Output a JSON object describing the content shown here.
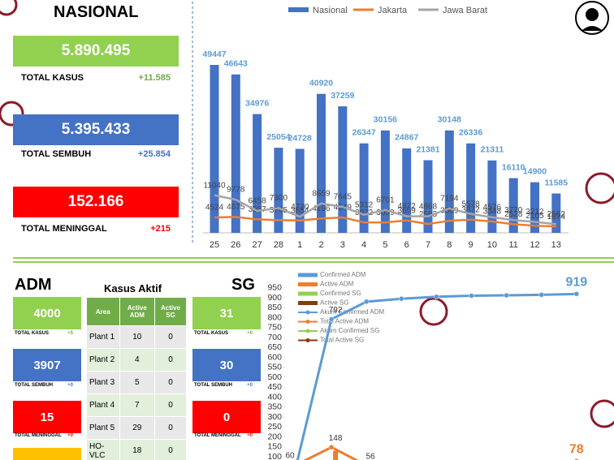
{
  "nasional": {
    "title": "NASIONAL",
    "stats": [
      {
        "value": "5.890.495",
        "label": "TOTAL KASUS",
        "change": "+11.585"
      },
      {
        "value": "5.395.433",
        "label": "TOTAL SEMBUH",
        "change": "+25.854"
      },
      {
        "value": "152.166",
        "label": "TOTAL MENINGGAL",
        "change": "+215"
      }
    ]
  },
  "adm": {
    "title": "ADM",
    "stats": [
      {
        "value": "4000",
        "label": "TOTAL KASUS",
        "change": "+5"
      },
      {
        "value": "3907",
        "label": "TOTAL SEMBUH",
        "change": "+0"
      },
      {
        "value": "15",
        "label": "TOTAL MENINGGAL",
        "change": "+0"
      }
    ]
  },
  "kasus_aktif": {
    "title": "Kasus Aktif",
    "columns": [
      "Area",
      "Active ADM",
      "Active SG"
    ],
    "rows": [
      [
        "Plant 1",
        10,
        0
      ],
      [
        "Plant 2",
        4,
        0
      ],
      [
        "Plant 3",
        5,
        0
      ],
      [
        "Plant 4",
        7,
        0
      ],
      [
        "Plant 5",
        29,
        0
      ],
      [
        "HO-VLC",
        18,
        0
      ]
    ]
  },
  "sg": {
    "title": "SG",
    "stats": [
      {
        "value": "31",
        "label": "TOTAL KASUS",
        "change": "+0"
      },
      {
        "value": "30",
        "label": "TOTAL SEMBUH",
        "change": "+0"
      },
      {
        "value": "0",
        "label": "TOTAL MENINGGAL",
        "change": "+0"
      }
    ]
  },
  "chart_data": [
    {
      "type": "bar",
      "categories": [
        "25",
        "26",
        "27",
        "28",
        "1",
        "2",
        "3",
        "4",
        "5",
        "6",
        "7",
        "8",
        "9",
        "10",
        "11",
        "12",
        "13"
      ],
      "series": [
        {
          "name": "Nasional",
          "type": "bar",
          "color": "#4472c4",
          "values": [
            49447,
            46643,
            34976,
            25054,
            24728,
            40920,
            37259,
            26347,
            30156,
            24867,
            21381,
            30148,
            26336,
            21311,
            16110,
            14900,
            11585
          ]
        },
        {
          "name": "Jakarta",
          "type": "line",
          "color": "#ed7d31",
          "values": [
            4524,
            4675,
            3957,
            3745,
            3654,
            4196,
            4549,
            3072,
            3059,
            3659,
            2593,
            3569,
            3872,
            3348,
            2528,
            2105,
            1874
          ]
        },
        {
          "name": "Jawa Barat",
          "type": "line",
          "color": "#a5a5a5",
          "values": [
            11040,
            9778,
            6458,
            7300,
            4730,
            8659,
            7645,
            5312,
            6701,
            4872,
            4868,
            7194,
            5578,
            4576,
            3770,
            3212,
            2562
          ]
        }
      ]
    },
    {
      "type": "line",
      "categories": [
        null,
        null,
        null,
        null,
        null,
        null,
        null,
        null,
        null
      ],
      "ylim": [
        0,
        950
      ],
      "yticks": [
        100,
        150,
        200,
        250,
        300,
        350,
        400,
        450,
        500,
        550,
        600,
        650,
        700,
        750,
        800,
        850,
        900,
        950
      ],
      "series": [
        {
          "name": "Confirmed ADM",
          "type": "bar",
          "color": "#5b9bd5",
          "values": [
            null,
            null,
            null,
            null,
            null,
            null,
            null,
            null,
            null
          ]
        },
        {
          "name": "Active ADM",
          "type": "bar",
          "color": "#ed7d31",
          "values": [
            null,
            130,
            null,
            null,
            null,
            null,
            null,
            null,
            null
          ]
        },
        {
          "name": "Confirmed SG",
          "type": "bar",
          "color": "#92d050",
          "values": [
            null,
            null,
            null,
            null,
            null,
            null,
            null,
            null,
            null
          ]
        },
        {
          "name": "Active SG",
          "type": "bar",
          "color": "#843c0c",
          "values": [
            null,
            null,
            null,
            null,
            null,
            null,
            null,
            null,
            null
          ]
        },
        {
          "name": "Akum Confirmed ADM",
          "type": "line",
          "color": "#5b9bd5",
          "values": [
            60,
            792,
            880,
            895,
            905,
            910,
            912,
            915,
            919
          ],
          "value_labels": [
            "60",
            "792",
            null,
            null,
            null,
            null,
            null,
            null,
            "919"
          ]
        },
        {
          "name": "Total Active ADM",
          "type": "line",
          "color": "#ed7d31",
          "values": [
            60,
            148,
            56,
            50,
            45,
            40,
            35,
            30,
            78
          ],
          "value_labels": [
            null,
            "148",
            "56",
            null,
            null,
            null,
            null,
            null,
            "78"
          ]
        },
        {
          "name": "Akum Confirmed SG",
          "type": "line",
          "color": "#92d050",
          "values": [
            2,
            5,
            10,
            15,
            20,
            24,
            28,
            30,
            31
          ]
        },
        {
          "name": "Total Active SG",
          "type": "line",
          "color": "#843c0c",
          "values": [
            0,
            0,
            0,
            0,
            0,
            0,
            0,
            0,
            0
          ]
        }
      ]
    }
  ]
}
